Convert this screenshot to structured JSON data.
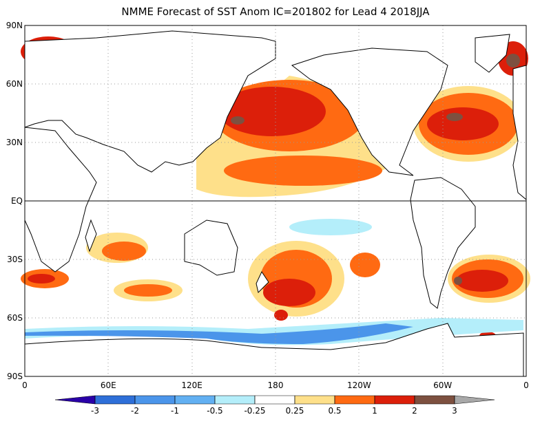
{
  "chart_data": {
    "type": "map",
    "title": "NMME Forecast of SST Anom IC=201802 for Lead 4 2018JJA",
    "lat_labels": [
      "90N",
      "60N",
      "30N",
      "EQ",
      "30S",
      "60S",
      "90S"
    ],
    "lon_labels": [
      "0",
      "60E",
      "120E",
      "180",
      "120W",
      "60W",
      "0"
    ],
    "colorbar": {
      "levels": [
        -3,
        -2,
        -1,
        -0.5,
        -0.25,
        0.25,
        0.5,
        1,
        2,
        3
      ],
      "colors": [
        "#2a00a8",
        "#2e6fd8",
        "#4b95ea",
        "#62b0f2",
        "#b4eefa",
        "#ffffff",
        "#fee08a",
        "#ff6a12",
        "#dc1f0a",
        "#7d5040",
        "#a8a8a8"
      ]
    }
  }
}
